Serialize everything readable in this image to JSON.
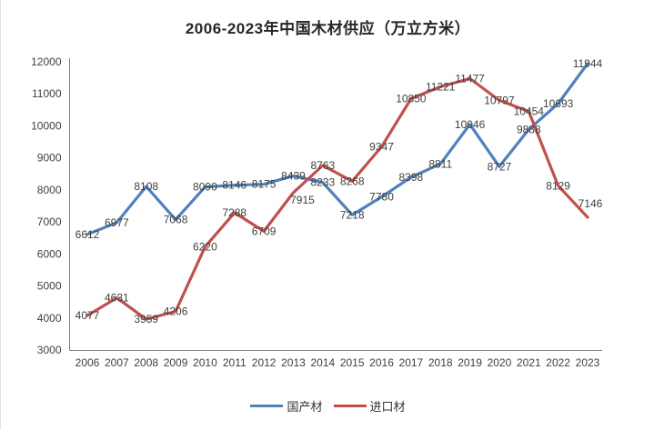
{
  "title": "2006-2023年中国木材供应（万立方米）",
  "chart_data": {
    "type": "line",
    "title": "2006-2023年中国木材供应（万立方米）",
    "categories": [
      "2006",
      "2007",
      "2008",
      "2009",
      "2010",
      "2011",
      "2012",
      "2013",
      "2014",
      "2015",
      "2016",
      "2017",
      "2018",
      "2019",
      "2020",
      "2021",
      "2022",
      "2023"
    ],
    "series": [
      {
        "name": "国产材",
        "color": "#4F81BD",
        "values": [
          6612,
          6977,
          8108,
          7068,
          8090,
          8146,
          8175,
          8439,
          8233,
          7218,
          7780,
          8398,
          8811,
          10046,
          8727,
          9888,
          10693,
          11944
        ],
        "label_offsets": []
      },
      {
        "name": "进口材",
        "color": "#C0504D",
        "values": [
          4077,
          4631,
          3959,
          4206,
          6220,
          7288,
          6709,
          7915,
          8763,
          8268,
          9347,
          10850,
          11221,
          11477,
          10797,
          10454,
          8129,
          7146
        ],
        "label_offsets": [
          {
            "index": 7,
            "dx": 10,
            "dy": 8
          },
          {
            "index": 17,
            "dx": 3,
            "dy": -15
          }
        ]
      }
    ],
    "ylim": [
      3000,
      12000
    ],
    "yticks": [
      3000,
      4000,
      5000,
      6000,
      7000,
      8000,
      9000,
      10000,
      11000,
      12000
    ],
    "grid": false,
    "legend_position": "bottom",
    "axis_color": "#7F7F7F",
    "label_color": "#404040",
    "data_label_position": "center"
  }
}
